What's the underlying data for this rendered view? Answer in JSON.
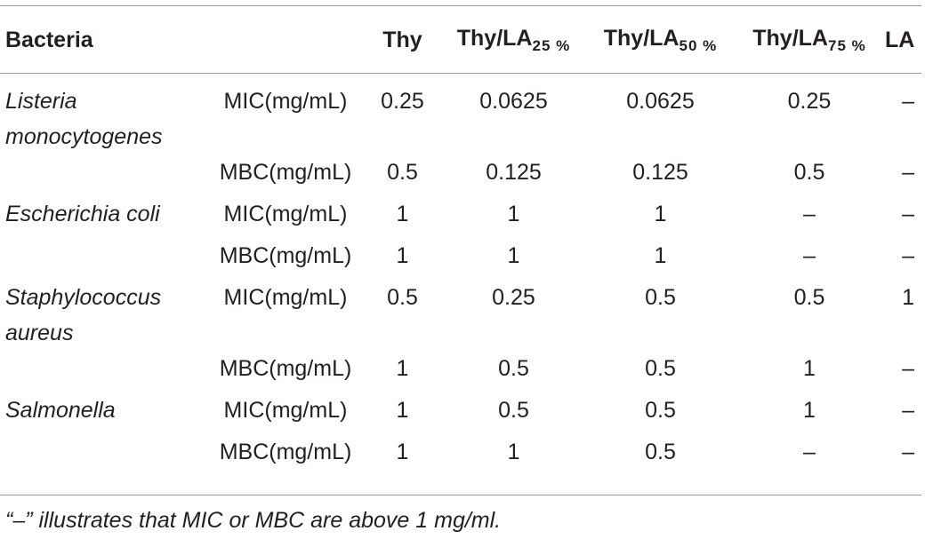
{
  "table": {
    "headers": {
      "bacteria": "Bacteria",
      "param": "",
      "thy": "Thy",
      "thy_la25_base": "Thy/LA",
      "thy_la25_sub": "25 %",
      "thy_la50_base": "Thy/LA",
      "thy_la50_sub": "50 %",
      "thy_la75_base": "Thy/LA",
      "thy_la75_sub": "75 %",
      "la": "LA"
    },
    "rows": [
      {
        "bacteria": "Listeria monocytogenes",
        "param": "MIC(mg/mL)",
        "thy": "0.25",
        "thy_la25": "0.0625",
        "thy_la50": "0.0625",
        "thy_la75": "0.25",
        "la": "–"
      },
      {
        "bacteria": "",
        "param": "MBC(mg/mL)",
        "thy": "0.5",
        "thy_la25": "0.125",
        "thy_la50": "0.125",
        "thy_la75": "0.5",
        "la": "–"
      },
      {
        "bacteria": "Escherichia coli",
        "param": "MIC(mg/mL)",
        "thy": "1",
        "thy_la25": "1",
        "thy_la50": "1",
        "thy_la75": "–",
        "la": "–"
      },
      {
        "bacteria": "",
        "param": "MBC(mg/mL)",
        "thy": "1",
        "thy_la25": "1",
        "thy_la50": "1",
        "thy_la75": "–",
        "la": "–"
      },
      {
        "bacteria": "Staphylococcus aureus",
        "param": "MIC(mg/mL)",
        "thy": "0.5",
        "thy_la25": "0.25",
        "thy_la50": "0.5",
        "thy_la75": "0.5",
        "la": "1"
      },
      {
        "bacteria": "",
        "param": "MBC(mg/mL)",
        "thy": "1",
        "thy_la25": "0.5",
        "thy_la50": "0.5",
        "thy_la75": "1",
        "la": "–"
      },
      {
        "bacteria": "Salmonella",
        "param": "MIC(mg/mL)",
        "thy": "1",
        "thy_la25": "0.5",
        "thy_la50": "0.5",
        "thy_la75": "1",
        "la": "–"
      },
      {
        "bacteria": "",
        "param": "MBC(mg/mL)",
        "thy": "1",
        "thy_la25": "1",
        "thy_la50": "0.5",
        "thy_la75": "–",
        "la": "–"
      }
    ]
  },
  "footnote": "“–” illustrates that MIC or MBC are above 1 mg/ml."
}
